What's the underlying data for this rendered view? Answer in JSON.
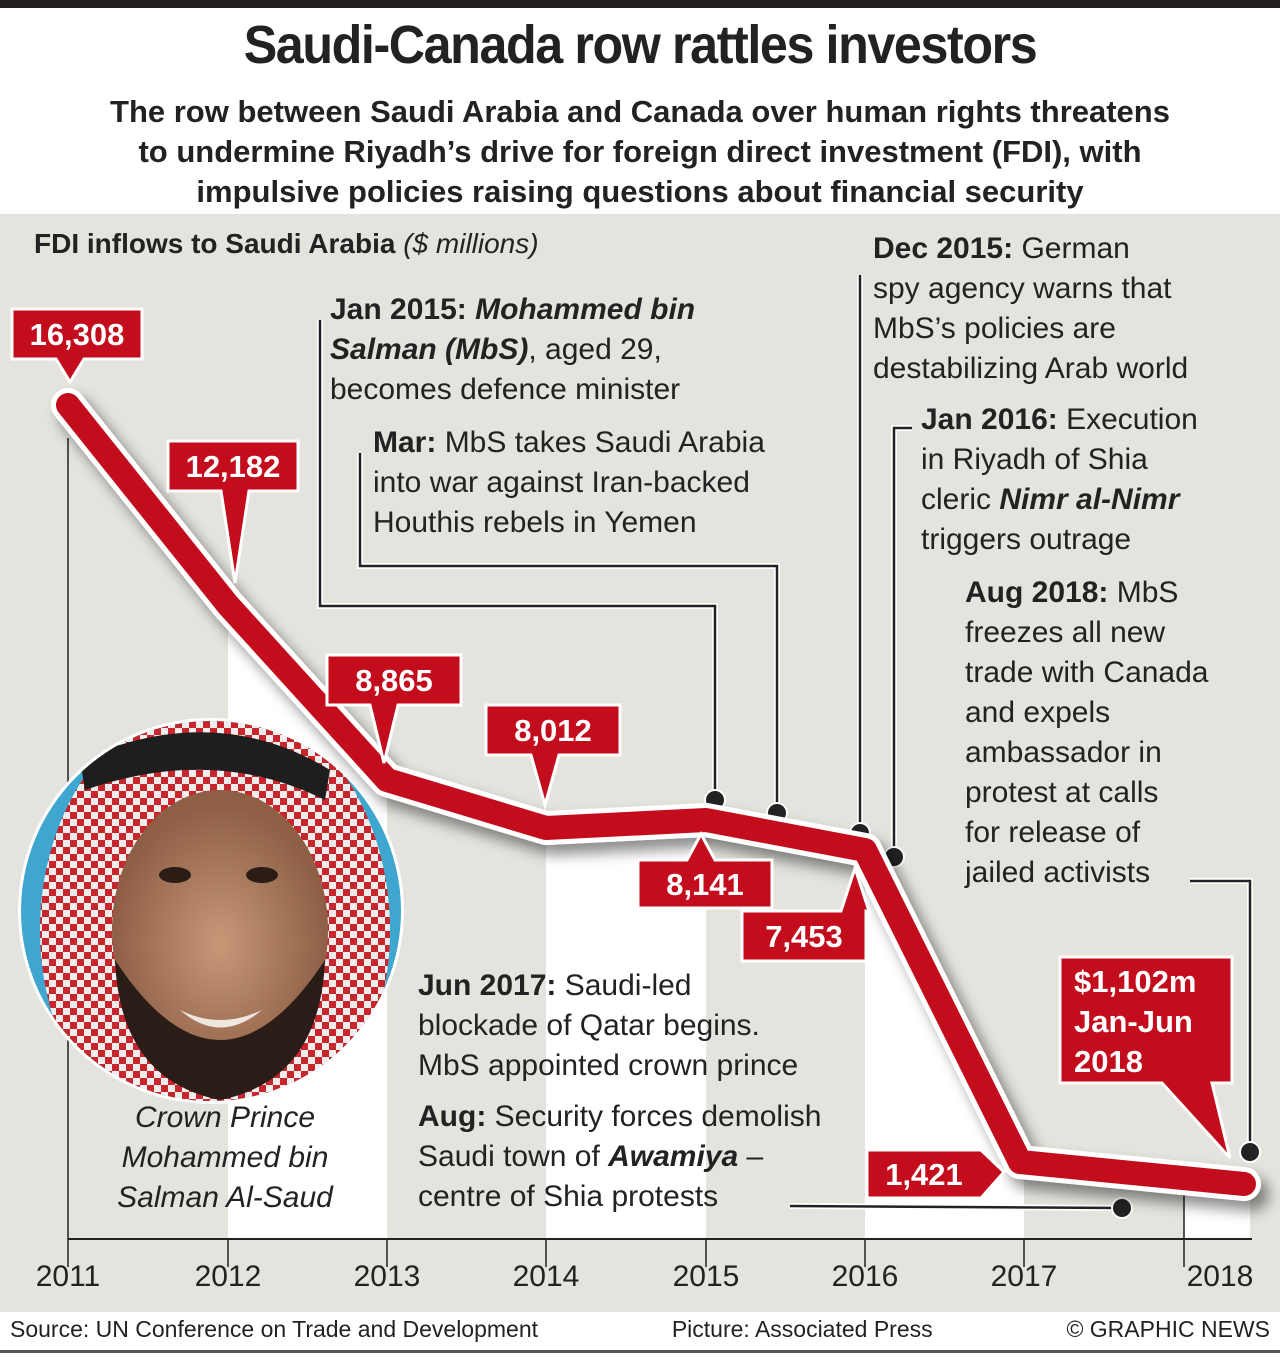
{
  "header": {
    "title": "Saudi-Canada row rattles investors",
    "subtitle_lines": [
      "The row between Saudi Arabia and Canada over human rights threatens",
      "to undermine Riyadh’s drive for foreign direct investment (FDI), with",
      "impulsive policies raising questions about financial security"
    ]
  },
  "chart_data": {
    "type": "line",
    "title": "FDI inflows to Saudi Arabia",
    "units": "($ millions)",
    "xlabel": "",
    "ylabel": "",
    "x": [
      "2011",
      "2012",
      "2013",
      "2014",
      "2015",
      "2016",
      "2017",
      "2018"
    ],
    "series": [
      {
        "name": "FDI inflows",
        "values": [
          16308,
          12182,
          8865,
          8012,
          8141,
          7453,
          1421,
          1102
        ],
        "labels": [
          "16,308",
          "12,182",
          "8,865",
          "8,012",
          "8,141",
          "7,453",
          "1,421",
          "$1,102m"
        ]
      }
    ],
    "last_point_note": [
      "$1,102m",
      "Jan-Jun",
      "2018"
    ],
    "ylim": [
      0,
      17000
    ],
    "grid": false,
    "colors": {
      "line": "#c30c1c",
      "background": "#e4e3dd",
      "band": "#ffffff"
    },
    "annotations": [
      {
        "id": "jan2015",
        "date": "Jan 2015:",
        "lines": [
          [
            {
              "t": "Jan 2015: ",
              "s": "b"
            },
            {
              "t": "Mohammed bin",
              "s": "bi"
            }
          ],
          [
            {
              "t": "Salman (MbS)",
              "s": "bi"
            },
            {
              "t": ", aged 29,",
              "s": "n"
            }
          ],
          [
            {
              "t": "becomes defence minister",
              "s": "n"
            }
          ]
        ]
      },
      {
        "id": "mar2015",
        "lines": [
          [
            {
              "t": "Mar: ",
              "s": "b"
            },
            {
              "t": "MbS takes Saudi Arabia",
              "s": "n"
            }
          ],
          [
            {
              "t": "into war against Iran-backed",
              "s": "n"
            }
          ],
          [
            {
              "t": "Houthis rebels in Yemen",
              "s": "n"
            }
          ]
        ]
      },
      {
        "id": "dec2015",
        "lines": [
          [
            {
              "t": "Dec 2015: ",
              "s": "b"
            },
            {
              "t": "German",
              "s": "n"
            }
          ],
          [
            {
              "t": "spy agency warns that",
              "s": "n"
            }
          ],
          [
            {
              "t": "MbS’s policies are",
              "s": "n"
            }
          ],
          [
            {
              "t": "destabilizing Arab world",
              "s": "n"
            }
          ]
        ]
      },
      {
        "id": "jan2016",
        "lines": [
          [
            {
              "t": "Jan 2016: ",
              "s": "b"
            },
            {
              "t": "Execution",
              "s": "n"
            }
          ],
          [
            {
              "t": "in Riyadh of Shia",
              "s": "n"
            }
          ],
          [
            {
              "t": "cleric ",
              "s": "n"
            },
            {
              "t": "Nimr al-Nimr",
              "s": "bi"
            }
          ],
          [
            {
              "t": "triggers outrage",
              "s": "n"
            }
          ]
        ]
      },
      {
        "id": "aug2018",
        "lines": [
          [
            {
              "t": "Aug 2018: ",
              "s": "b"
            },
            {
              "t": "MbS",
              "s": "n"
            }
          ],
          [
            {
              "t": "freezes all new",
              "s": "n"
            }
          ],
          [
            {
              "t": "trade with Canada",
              "s": "n"
            }
          ],
          [
            {
              "t": "and expels",
              "s": "n"
            }
          ],
          [
            {
              "t": "ambassador in",
              "s": "n"
            }
          ],
          [
            {
              "t": "protest at calls",
              "s": "n"
            }
          ],
          [
            {
              "t": "for release of",
              "s": "n"
            }
          ],
          [
            {
              "t": "jailed activists",
              "s": "n"
            }
          ]
        ]
      },
      {
        "id": "jun2017",
        "lines": [
          [
            {
              "t": "Jun 2017: ",
              "s": "b"
            },
            {
              "t": "Saudi-led",
              "s": "n"
            }
          ],
          [
            {
              "t": "blockade of Qatar begins.",
              "s": "n"
            }
          ],
          [
            {
              "t": "MbS appointed crown prince",
              "s": "n"
            }
          ]
        ]
      },
      {
        "id": "aug2017",
        "lines": [
          [
            {
              "t": "Aug: ",
              "s": "b"
            },
            {
              "t": "Security forces demolish",
              "s": "n"
            }
          ],
          [
            {
              "t": "Saudi town of ",
              "s": "n"
            },
            {
              "t": "Awamiya",
              "s": "bi"
            },
            {
              "t": " –",
              "s": "n"
            }
          ],
          [
            {
              "t": "centre of Shia protests",
              "s": "n"
            }
          ]
        ]
      }
    ]
  },
  "photo": {
    "caption_lines": [
      "Crown Prince",
      "Mohammed bin",
      "Salman Al-Saud"
    ]
  },
  "footer": {
    "source": "Source: UN Conference on Trade and Development",
    "picture": "Picture: Associated Press",
    "credit": "© GRAPHIC NEWS"
  }
}
